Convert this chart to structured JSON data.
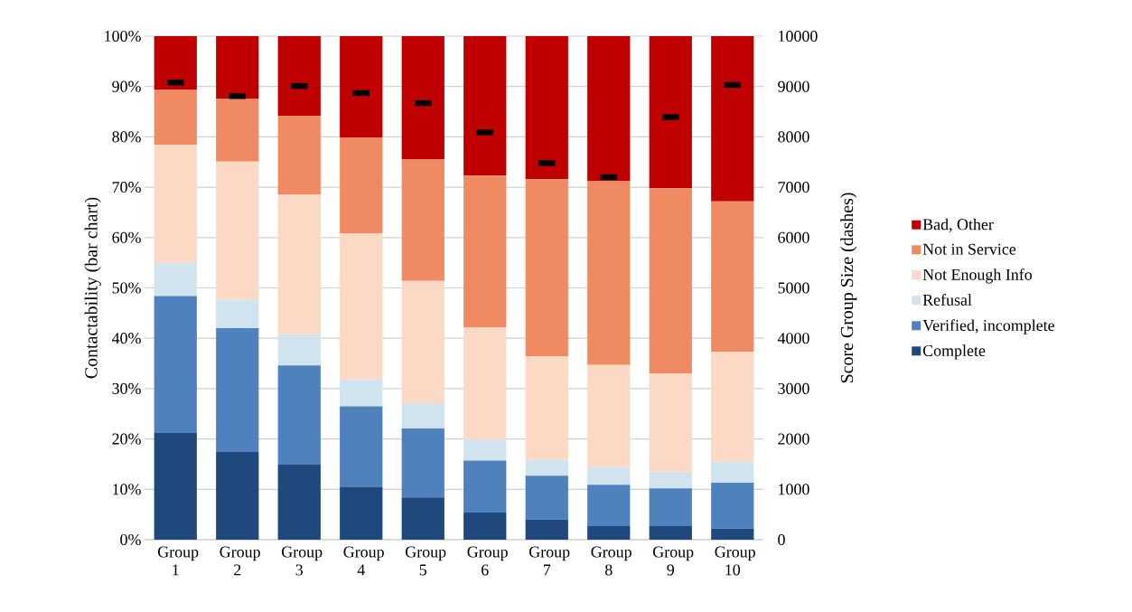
{
  "chart_data": {
    "type": "bar",
    "stacked": true,
    "categories": [
      "Group 1",
      "Group 2",
      "Group 3",
      "Group 4",
      "Group 5",
      "Group 6",
      "Group 7",
      "Group 8",
      "Group 9",
      "Group 10"
    ],
    "ylabel": "Contactability (bar chart)",
    "y2label": "Score Group Size (dashes)",
    "series": [
      {
        "name": "Complete",
        "color": "#1f497d",
        "values": [
          21.2,
          17.4,
          14.9,
          10.4,
          8.4,
          5.4,
          4.0,
          2.7,
          2.7,
          2.2
        ]
      },
      {
        "name": "Verified, incomplete",
        "color": "#4f81bd",
        "values": [
          27.2,
          24.6,
          19.7,
          16.1,
          13.7,
          10.3,
          8.7,
          8.2,
          7.5,
          9.1
        ]
      },
      {
        "name": "Refusal",
        "color": "#d0e3ef",
        "values": [
          6.6,
          5.7,
          6.2,
          5.3,
          4.9,
          4.2,
          3.2,
          3.5,
          3.2,
          4.2
        ]
      },
      {
        "name": "Not Enough Info",
        "color": "#fcd9c4",
        "values": [
          23.4,
          27.4,
          27.8,
          29.0,
          24.4,
          22.3,
          20.5,
          20.3,
          19.6,
          21.8
        ]
      },
      {
        "name": "Not in Service",
        "color": "#ef8a62",
        "values": [
          10.9,
          12.4,
          15.6,
          19.1,
          24.1,
          30.1,
          35.2,
          36.5,
          36.8,
          29.9
        ]
      },
      {
        "name": "Bad, Other",
        "color": "#c00000",
        "values": [
          10.7,
          12.5,
          15.8,
          20.1,
          24.5,
          27.7,
          28.4,
          28.8,
          30.2,
          32.8
        ]
      },
      {
        "type": "scatter",
        "axis": "y2",
        "color": "#000000",
        "values": [
          9080,
          8810,
          9010,
          8870,
          8670,
          8090,
          7480,
          7200,
          8390,
          9030
        ]
      }
    ],
    "ylim": [
      0,
      100
    ],
    "yticks": [
      {
        "value": 0,
        "label": "0%"
      },
      {
        "value": 10,
        "label": "10%"
      },
      {
        "value": 20,
        "label": "20%"
      },
      {
        "value": 30,
        "label": "30%"
      },
      {
        "value": 40,
        "label": "40%"
      },
      {
        "value": 50,
        "label": "50%"
      },
      {
        "value": 60,
        "label": "60%"
      },
      {
        "value": 70,
        "label": "70%"
      },
      {
        "value": 80,
        "label": "80%"
      },
      {
        "value": 90,
        "label": "90%"
      },
      {
        "value": 100,
        "label": "100%"
      }
    ],
    "y2lim": [
      0,
      10000
    ],
    "y2ticks": [
      0,
      1000,
      2000,
      3000,
      4000,
      5000,
      6000,
      7000,
      8000,
      9000,
      10000
    ],
    "grid": "y",
    "legend": "right"
  }
}
